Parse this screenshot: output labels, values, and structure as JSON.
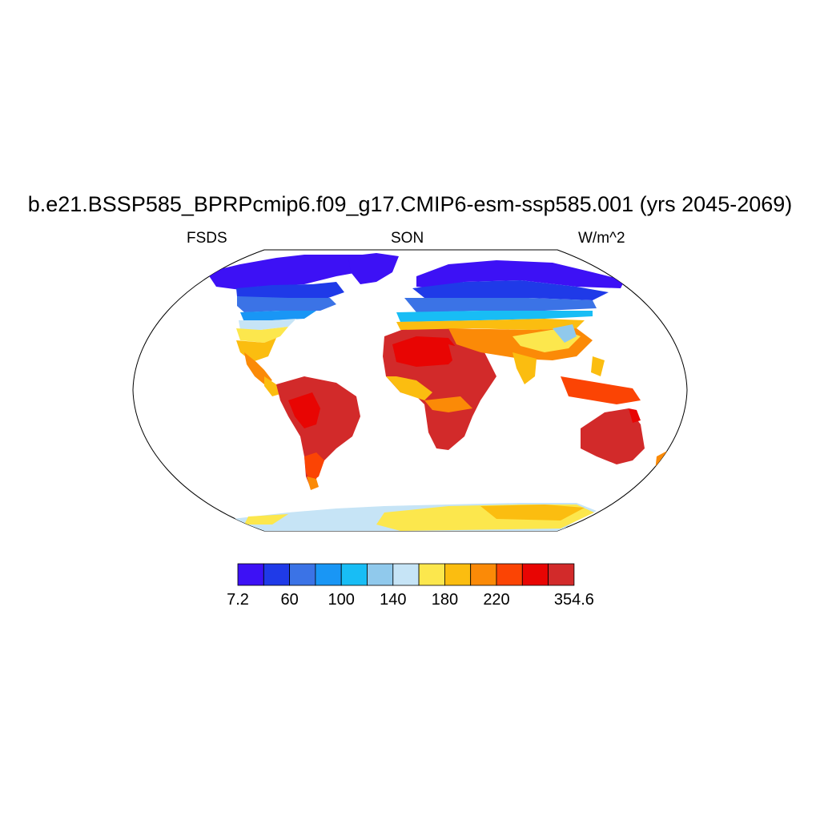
{
  "title": "b.e21.BSSP585_BPRPcmip6.f09_g17.CMIP6-esm-ssp585.001 (yrs 2045-2069)",
  "left_string": "FSDS",
  "center_string": "SON",
  "right_string": "W/m^2",
  "colorbar": {
    "colors": [
      "#3d11f5",
      "#1f3ae8",
      "#3b73e6",
      "#1996f5",
      "#18bdf5",
      "#90c9ec",
      "#c6e4f6",
      "#fce74d",
      "#fbbd10",
      "#fb8a07",
      "#fb4404",
      "#e80503",
      "#d22a2a"
    ],
    "tick_labels": [
      {
        "label": "7.2",
        "boundary": 0
      },
      {
        "label": "60",
        "boundary": 1
      },
      {
        "label": "100",
        "boundary": 2
      },
      {
        "label": "140",
        "boundary": 3
      },
      {
        "label": "180",
        "boundary": 4
      },
      {
        "label": "220",
        "boundary": 5
      },
      {
        "label": "354.6",
        "boundary": 6
      }
    ]
  }
}
